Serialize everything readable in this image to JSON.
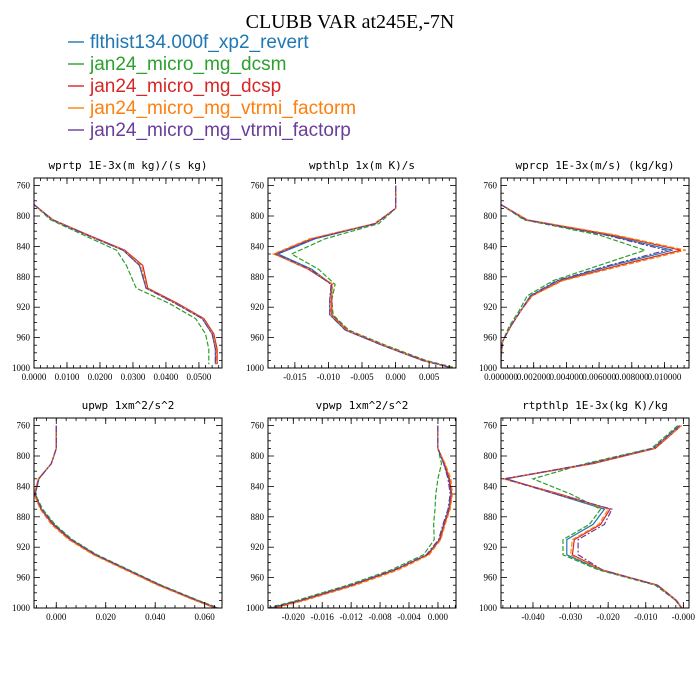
{
  "figure": {
    "title": "CLUBB VAR at245E,-7N"
  },
  "legend": [
    {
      "label": "flthist134.000f_xp2_revert",
      "color": "#1f77b4"
    },
    {
      "label": "jan24_micro_mg_dcsm",
      "color": "#2ca02c"
    },
    {
      "label": "jan24_micro_mg_dcsp",
      "color": "#d62728"
    },
    {
      "label": "jan24_micro_mg_vtrmi_factorm",
      "color": "#ff7f0e"
    },
    {
      "label": "jan24_micro_mg_vtrmi_factorp",
      "color": "#6a3d9a"
    }
  ],
  "chart_data": [
    {
      "type": "line",
      "title": "wprtp  1E-3x(m kg)/(s kg)",
      "xlim": [
        0.0,
        0.057
      ],
      "ylim": [
        1000,
        750
      ],
      "xticks": [
        0.0,
        0.01,
        0.02,
        0.03,
        0.04,
        0.05
      ],
      "xticklabels": [
        "0.0000",
        "0.0100",
        "0.0200",
        "0.0300",
        "0.0400",
        "0.0500"
      ],
      "yticks": [
        760,
        800,
        840,
        880,
        920,
        960,
        1000
      ],
      "levels": [
        785,
        805,
        825,
        845,
        865,
        895,
        915,
        935,
        955,
        975,
        995
      ],
      "series": [
        {
          "values": [
            0.0,
            0.0055,
            0.016,
            0.027,
            0.032,
            0.034,
            0.043,
            0.051,
            0.054,
            0.055,
            0.055
          ]
        },
        {
          "values": [
            0.0,
            0.005,
            0.015,
            0.025,
            0.028,
            0.031,
            0.041,
            0.049,
            0.052,
            0.053,
            0.053
          ]
        },
        {
          "values": [
            0.0,
            0.0058,
            0.0165,
            0.0275,
            0.033,
            0.0345,
            0.0435,
            0.0515,
            0.0545,
            0.0555,
            0.0555
          ]
        },
        {
          "values": [
            0.0,
            0.0057,
            0.016,
            0.0272,
            0.0325,
            0.0342,
            0.043,
            0.0512,
            0.0542,
            0.0552,
            0.0552
          ]
        },
        {
          "values": [
            0.0,
            0.0056,
            0.016,
            0.027,
            0.032,
            0.034,
            0.0428,
            0.051,
            0.054,
            0.055,
            0.055
          ]
        }
      ]
    },
    {
      "type": "line",
      "title": "wpthlp  1x(m K)/s",
      "xlim": [
        -0.019,
        0.009
      ],
      "ylim": [
        1000,
        750
      ],
      "xticks": [
        -0.015,
        -0.01,
        -0.005,
        0.0,
        0.005
      ],
      "xticklabels": [
        "-0.015",
        "-0.010",
        "-0.005",
        "0.000",
        "0.005"
      ],
      "yticks": [
        760,
        800,
        840,
        880,
        920,
        960,
        1000
      ],
      "levels": [
        760,
        790,
        810,
        830,
        850,
        870,
        890,
        910,
        930,
        950,
        970,
        990,
        1000
      ],
      "series": [
        {
          "values": [
            0.0,
            0.0,
            -0.003,
            -0.012,
            -0.0175,
            -0.0125,
            -0.0095,
            -0.0098,
            -0.0098,
            -0.0075,
            -0.002,
            0.004,
            0.0085
          ]
        },
        {
          "values": [
            0.0,
            0.0,
            -0.0025,
            -0.0105,
            -0.0155,
            -0.0115,
            -0.009,
            -0.0095,
            -0.0093,
            -0.007,
            -0.0015,
            0.0045,
            0.009
          ]
        },
        {
          "values": [
            0.0,
            0.0,
            -0.003,
            -0.0125,
            -0.018,
            -0.013,
            -0.0095,
            -0.0095,
            -0.0095,
            -0.0072,
            -0.0018,
            0.0042,
            0.0085
          ]
        },
        {
          "values": [
            0.0,
            0.0,
            -0.0032,
            -0.0128,
            -0.0182,
            -0.0128,
            -0.0093,
            -0.0097,
            -0.0097,
            -0.0073,
            -0.0018,
            0.004,
            0.0085
          ]
        },
        {
          "values": [
            0.0,
            0.0,
            -0.003,
            -0.0122,
            -0.0178,
            -0.0127,
            -0.0096,
            -0.0098,
            -0.0098,
            -0.0075,
            -0.002,
            0.004,
            0.0085
          ]
        }
      ]
    },
    {
      "type": "line",
      "title": "wprcp  1E-3x(m/s) (kg/kg)",
      "xlim": [
        0.0,
        0.0115
      ],
      "ylim": [
        1000,
        750
      ],
      "xticks": [
        0.0,
        0.002,
        0.004,
        0.006,
        0.008,
        0.01
      ],
      "xticklabels": [
        "0.000000",
        "0.002000",
        "0.004000",
        "0.006000",
        "0.008000",
        "0.010000"
      ],
      "yticks": [
        760,
        800,
        840,
        880,
        920,
        960,
        1000
      ],
      "levels": [
        785,
        805,
        825,
        845,
        865,
        885,
        905,
        925,
        945,
        965,
        985,
        1000
      ],
      "series": [
        {
          "values": [
            0.0,
            0.0015,
            0.0065,
            0.0105,
            0.0068,
            0.0035,
            0.0018,
            0.0012,
            0.0006,
            0.0001,
            0.0,
            0.0
          ]
        },
        {
          "values": [
            0.0,
            0.0014,
            0.006,
            0.0088,
            0.006,
            0.0032,
            0.0016,
            0.0011,
            0.0005,
            0.0001,
            0.0,
            0.0
          ]
        },
        {
          "values": [
            0.0,
            0.0016,
            0.0068,
            0.011,
            0.0072,
            0.0037,
            0.0019,
            0.0012,
            0.0006,
            0.0001,
            0.0,
            0.0
          ]
        },
        {
          "values": [
            0.0,
            0.0016,
            0.007,
            0.0113,
            0.0075,
            0.0038,
            0.0019,
            0.0012,
            0.0006,
            0.0001,
            0.0,
            0.0
          ]
        },
        {
          "values": [
            0.0,
            0.0015,
            0.0064,
            0.0101,
            0.0066,
            0.0034,
            0.0018,
            0.0012,
            0.0006,
            0.0001,
            0.0,
            0.0
          ]
        }
      ]
    },
    {
      "type": "line",
      "title": "upwp  1xm^2/s^2",
      "xlim": [
        -0.009,
        0.067
      ],
      "ylim": [
        1000,
        750
      ],
      "xticks": [
        0.0,
        0.02,
        0.04,
        0.06
      ],
      "xticklabels": [
        "0.000",
        "0.020",
        "0.040",
        "0.060"
      ],
      "yticks": [
        760,
        800,
        840,
        880,
        920,
        960,
        1000
      ],
      "levels": [
        760,
        790,
        810,
        830,
        850,
        870,
        890,
        910,
        930,
        950,
        970,
        990,
        1000
      ],
      "series": [
        {
          "values": [
            0.0,
            0.0,
            -0.002,
            -0.007,
            -0.0085,
            -0.006,
            -0.001,
            0.006,
            0.016,
            0.029,
            0.042,
            0.057,
            0.065
          ]
        },
        {
          "values": [
            0.0,
            0.0,
            -0.002,
            -0.007,
            -0.0085,
            -0.0055,
            -0.0005,
            0.0065,
            0.0165,
            0.0295,
            0.0425,
            0.0575,
            0.0655
          ]
        },
        {
          "values": [
            0.0,
            0.0,
            -0.002,
            -0.0072,
            -0.0088,
            -0.0062,
            -0.0015,
            0.0055,
            0.0155,
            0.0285,
            0.0415,
            0.0565,
            0.0645
          ]
        },
        {
          "values": [
            0.0,
            0.0,
            -0.002,
            -0.0073,
            -0.009,
            -0.0065,
            -0.002,
            0.005,
            0.015,
            0.028,
            0.041,
            0.056,
            0.064
          ]
        },
        {
          "values": [
            0.0,
            0.0,
            -0.002,
            -0.007,
            -0.0085,
            -0.006,
            -0.001,
            0.006,
            0.016,
            0.029,
            0.042,
            0.057,
            0.065
          ]
        }
      ]
    },
    {
      "type": "line",
      "title": "vpwp  1xm^2/s^2",
      "xlim": [
        -0.0235,
        0.0025
      ],
      "ylim": [
        1000,
        750
      ],
      "xticks": [
        -0.02,
        -0.016,
        -0.012,
        -0.008,
        -0.004,
        0.0
      ],
      "xticklabels": [
        "-0.020",
        "-0.016",
        "-0.012",
        "-0.008",
        "-0.004",
        "0.000"
      ],
      "yticks": [
        760,
        800,
        840,
        880,
        920,
        960,
        1000
      ],
      "levels": [
        760,
        790,
        810,
        830,
        850,
        870,
        890,
        910,
        930,
        950,
        970,
        990,
        1000
      ],
      "series": [
        {
          "values": [
            0.0,
            0.0,
            0.0008,
            0.0015,
            0.0018,
            0.0015,
            0.0008,
            0.0002,
            -0.0015,
            -0.006,
            -0.012,
            -0.019,
            -0.023
          ]
        },
        {
          "values": [
            0.0,
            0.0,
            0.0005,
            0.0,
            -0.0003,
            -0.0004,
            -0.0006,
            -0.0005,
            -0.002,
            -0.0065,
            -0.0125,
            -0.0195,
            -0.0235
          ]
        },
        {
          "values": [
            0.0,
            0.0,
            0.0009,
            0.0016,
            0.0019,
            0.0016,
            0.0009,
            0.0003,
            -0.0014,
            -0.0059,
            -0.0118,
            -0.0188,
            -0.0228
          ]
        },
        {
          "values": [
            0.0,
            0.0,
            0.001,
            0.0018,
            0.002,
            0.0017,
            0.001,
            0.0004,
            -0.0012,
            -0.0055,
            -0.0114,
            -0.0184,
            -0.0224
          ]
        },
        {
          "values": [
            0.0,
            0.0,
            0.0008,
            0.0014,
            0.0017,
            0.0014,
            0.0007,
            0.0001,
            -0.0016,
            -0.0061,
            -0.0121,
            -0.0191,
            -0.0231
          ]
        }
      ]
    },
    {
      "type": "line",
      "title": "rtpthlp  1E-3x(kg K)/kg",
      "xlim": [
        -0.0485,
        0.0015
      ],
      "ylim": [
        1000,
        750
      ],
      "xticks": [
        -0.04,
        -0.03,
        -0.02,
        -0.01,
        0.0
      ],
      "xticklabels": [
        "-0.040",
        "-0.030",
        "-0.020",
        "-0.010",
        "-0.000"
      ],
      "yticks": [
        760,
        800,
        840,
        880,
        920,
        960,
        1000
      ],
      "levels": [
        760,
        790,
        810,
        830,
        850,
        870,
        890,
        910,
        930,
        950,
        970,
        990,
        1000
      ],
      "series": [
        {
          "values": [
            -0.001,
            -0.008,
            -0.025,
            -0.047,
            -0.034,
            -0.021,
            -0.024,
            -0.031,
            -0.031,
            -0.022,
            -0.007,
            -0.002,
            -0.0005
          ]
        },
        {
          "values": [
            -0.0015,
            -0.0085,
            -0.026,
            -0.04,
            -0.03,
            -0.022,
            -0.025,
            -0.032,
            -0.032,
            -0.0225,
            -0.0075,
            -0.002,
            -0.0005
          ]
        },
        {
          "values": [
            -0.0005,
            -0.0075,
            -0.024,
            -0.0475,
            -0.033,
            -0.0195,
            -0.022,
            -0.029,
            -0.0295,
            -0.0215,
            -0.0068,
            -0.0018,
            -0.0004
          ]
        },
        {
          "values": [
            -0.0005,
            -0.0078,
            -0.0245,
            -0.048,
            -0.0335,
            -0.02,
            -0.0225,
            -0.0295,
            -0.03,
            -0.0218,
            -0.0069,
            -0.0019,
            -0.0004
          ]
        },
        {
          "values": [
            -0.001,
            -0.008,
            -0.025,
            -0.0475,
            -0.034,
            -0.019,
            -0.021,
            -0.028,
            -0.028,
            -0.0215,
            -0.007,
            -0.002,
            -0.0005
          ]
        }
      ]
    }
  ]
}
